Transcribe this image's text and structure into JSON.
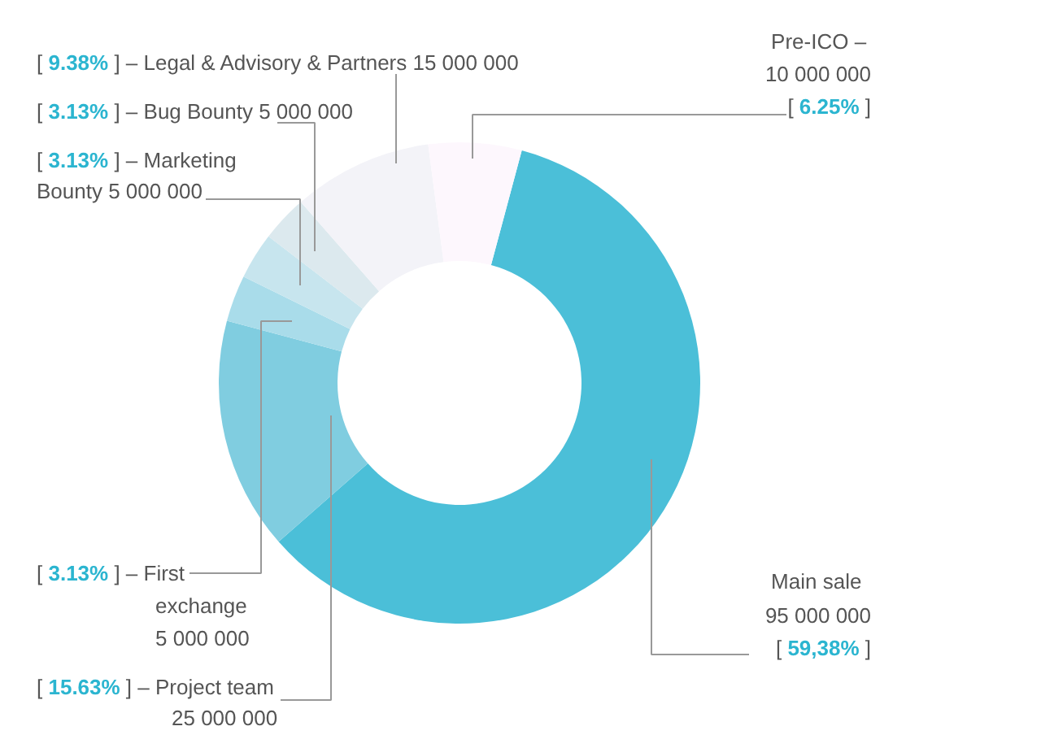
{
  "chart_data": {
    "type": "donut",
    "categories": [
      "Main sale\n95 000 000",
      "– Project team\n25 000 000",
      "– First\nexchange\n5 000 000",
      "– Marketing\nBounty 5 000 000",
      "– Bug Bounty 5 000 000",
      "– Legal & Advisory & Partners 15 000 000",
      "Pre-ICO –\n10 000 000"
    ],
    "values": [
      59.38,
      15.63,
      3.13,
      3.13,
      3.13,
      9.38,
      6.25
    ],
    "colors": [
      "#4bbfd8",
      "#80cde0",
      "#a9dcea",
      "#c7e5ee",
      "#dce9ee",
      "#f3f3f8",
      "#fdf7fd"
    ],
    "value_labels": [
      "[ 59,38% ]",
      "[ 15.63% ]",
      "[ 3.13% ]",
      "[ 3.13% ]",
      "[ 3.13% ]",
      "[ 9.38% ]",
      "[ 6.25% ]"
    ]
  }
}
